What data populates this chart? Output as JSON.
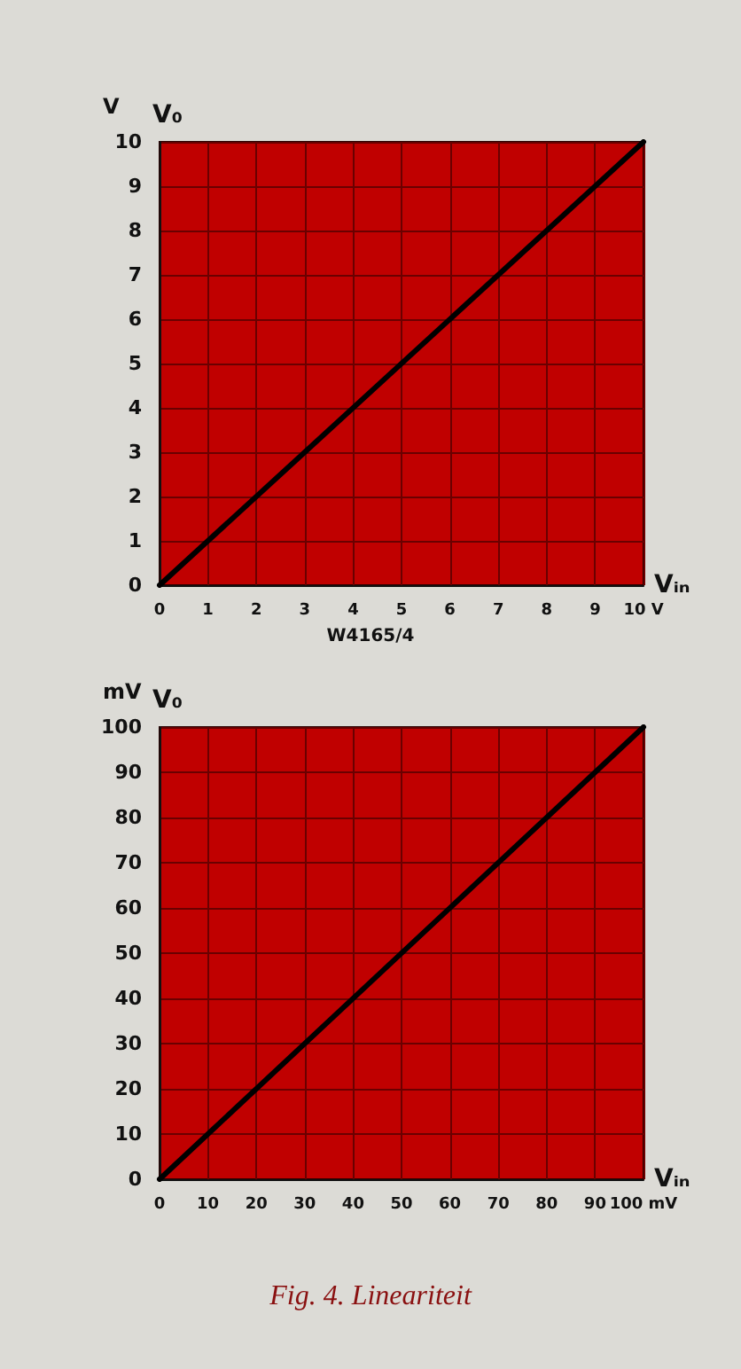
{
  "chart_data": [
    {
      "type": "line",
      "xlabel": "Vᵢₙ",
      "ylabel": "V₀",
      "annotations": [
        "V",
        "W4165/4"
      ],
      "series": [
        {
          "color": "#000000",
          "x": [
            0,
            10
          ],
          "values": [
            0,
            10
          ]
        }
      ],
      "xlim": [
        0,
        10
      ],
      "ylim": [
        0,
        10
      ],
      "xticks": [
        0,
        1,
        2,
        3,
        4,
        5,
        6,
        7,
        8,
        9,
        {
          "value": 10,
          "label": "10 V"
        }
      ],
      "yticks": [
        0,
        1,
        2,
        3,
        4,
        5,
        6,
        7,
        8,
        9,
        10
      ],
      "grid": true,
      "marker": "none",
      "line_style": "solid"
    },
    {
      "type": "line",
      "xlabel": "Vᵢₙ",
      "ylabel": "V₀",
      "annotations": [
        "mV",
        "Fig. 4. Lineariteit"
      ],
      "series": [
        {
          "color": "#000000",
          "x": [
            0,
            100
          ],
          "values": [
            0,
            100
          ]
        }
      ],
      "xlim": [
        0,
        100
      ],
      "ylim": [
        0,
        100
      ],
      "xticks": [
        0,
        10,
        20,
        30,
        40,
        50,
        60,
        70,
        80,
        90,
        {
          "value": 100,
          "label": "100 mV"
        }
      ],
      "yticks": [
        0,
        10,
        20,
        30,
        40,
        50,
        60,
        70,
        80,
        90,
        100
      ],
      "grid": true,
      "marker": "none",
      "line_style": "solid"
    }
  ]
}
